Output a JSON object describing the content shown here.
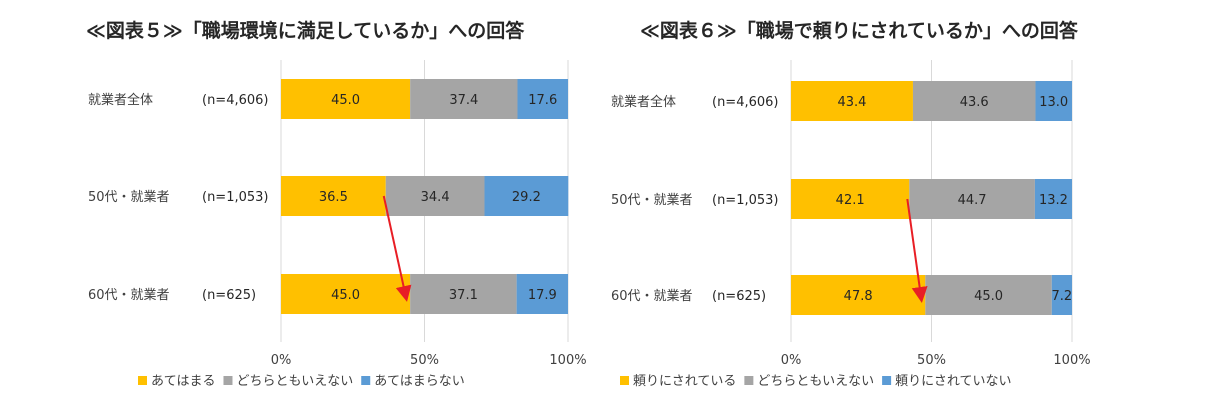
{
  "charts": [
    {
      "title": "≪図表５≫「職場環境に満足しているか」への回答"
    },
    {
      "title": "≪図表６≫「職場で頼りにされているか」への回答"
    }
  ],
  "chart_data": [
    {
      "type": "bar",
      "orientation": "horizontal",
      "stacked": true,
      "title": "≪図表５≫「職場環境に満足しているか」への回答",
      "categories": [
        "就業者全体",
        "50代・就業者",
        "60代・就業者"
      ],
      "sample_sizes": [
        "(n=4,606)",
        "(n=1,053)",
        "(n=625)"
      ],
      "series": [
        {
          "name": "あてはまる",
          "values": [
            45.0,
            36.5,
            45.0
          ],
          "color": "#FFC000"
        },
        {
          "name": "どちらともいえない",
          "values": [
            37.4,
            34.4,
            37.1
          ],
          "color": "#A5A5A5"
        },
        {
          "name": "あてはまらない",
          "values": [
            17.6,
            29.2,
            17.9
          ],
          "color": "#5B9BD5"
        }
      ],
      "value_labels": [
        [
          "45.0",
          "37.4",
          "17.6"
        ],
        [
          "36.5",
          "34.4",
          "29.2"
        ],
        [
          "45.0",
          "37.1",
          "17.9"
        ]
      ],
      "xlim": [
        0,
        100
      ],
      "xticks": [
        "0%",
        "50%",
        "100%"
      ],
      "grid": true,
      "legend_position": "bottom",
      "annotation": {
        "type": "arrow",
        "color": "#E81E25",
        "from": {
          "category": "50代・就業者",
          "value": 36.5
        },
        "to": {
          "category": "60代・就業者",
          "value": 45.0
        }
      }
    },
    {
      "type": "bar",
      "orientation": "horizontal",
      "stacked": true,
      "title": "≪図表６≫「職場で頼りにされているか」への回答",
      "categories": [
        "就業者全体",
        "50代・就業者",
        "60代・就業者"
      ],
      "sample_sizes": [
        "(n=4,606)",
        "(n=1,053)",
        "(n=625)"
      ],
      "series": [
        {
          "name": "頼りにされている",
          "values": [
            43.4,
            42.1,
            47.8
          ],
          "color": "#FFC000"
        },
        {
          "name": "どちらともいえない",
          "values": [
            43.6,
            44.7,
            45.0
          ],
          "color": "#A5A5A5"
        },
        {
          "name": "頼りにされていない",
          "values": [
            13.0,
            13.2,
            7.2
          ],
          "color": "#5B9BD5"
        }
      ],
      "value_labels": [
        [
          "43.4",
          "43.6",
          "13.0"
        ],
        [
          "42.1",
          "44.7",
          "13.2"
        ],
        [
          "47.8",
          "45.0",
          "7.2"
        ]
      ],
      "xlim": [
        0,
        100
      ],
      "xticks": [
        "0%",
        "50%",
        "100%"
      ],
      "grid": true,
      "legend_position": "bottom",
      "annotation": {
        "type": "arrow",
        "color": "#E81E25",
        "from": {
          "category": "50代・就業者",
          "value": 42.1
        },
        "to": {
          "category": "60代・就業者",
          "value": 47.8
        }
      }
    }
  ]
}
